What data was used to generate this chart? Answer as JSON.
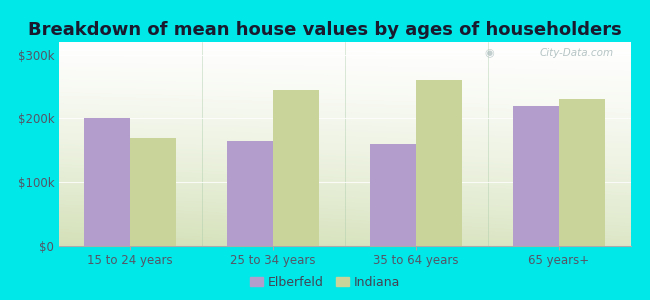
{
  "title": "Breakdown of mean house values by ages of householders",
  "categories": [
    "15 to 24 years",
    "25 to 34 years",
    "35 to 64 years",
    "65 years+"
  ],
  "elberfeld_values": [
    200000,
    165000,
    160000,
    220000
  ],
  "indiana_values": [
    170000,
    245000,
    260000,
    230000
  ],
  "elberfeld_color": "#b39dcc",
  "indiana_color": "#c8d49a",
  "background_color": "#00e8e8",
  "ytick_labels": [
    "$0",
    "$100k",
    "$200k",
    "$300k"
  ],
  "ytick_values": [
    0,
    100000,
    200000,
    300000
  ],
  "ylim": [
    0,
    320000
  ],
  "legend_labels": [
    "Elberfeld",
    "Indiana"
  ],
  "bar_width": 0.32,
  "title_fontsize": 13,
  "tick_fontsize": 8.5,
  "legend_fontsize": 9,
  "watermark_text": "City-Data.com"
}
